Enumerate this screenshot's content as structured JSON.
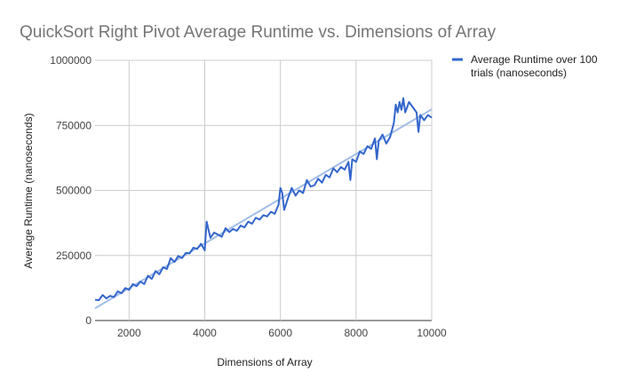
{
  "chart_data": {
    "type": "line",
    "title": "QuickSort Right Pivot Average Runtime vs. Dimensions of Array",
    "xlabel": "Dimensions of Array",
    "ylabel": "Average Runtime (nanoseconds)",
    "xlim": [
      1100,
      10000
    ],
    "ylim": [
      0,
      1000000
    ],
    "x_ticks": [
      2000,
      4000,
      6000,
      8000,
      10000
    ],
    "x_tick_labels": [
      "2000",
      "4000",
      "6000",
      "8000",
      "10000"
    ],
    "y_ticks": [
      0,
      250000,
      500000,
      750000,
      1000000
    ],
    "y_tick_labels": [
      "0",
      "250000",
      "500000",
      "750000",
      "1000000"
    ],
    "grid": true,
    "legend_position": "right",
    "series": [
      {
        "name": "Average Runtime over 100 trials (nanoseconds)",
        "color": "#3366cc",
        "points": [
          [
            1100,
            80000
          ],
          [
            1200,
            78000
          ],
          [
            1300,
            98000
          ],
          [
            1400,
            85000
          ],
          [
            1500,
            95000
          ],
          [
            1600,
            90000
          ],
          [
            1700,
            112000
          ],
          [
            1800,
            105000
          ],
          [
            1900,
            125000
          ],
          [
            2000,
            118000
          ],
          [
            2100,
            140000
          ],
          [
            2200,
            132000
          ],
          [
            2300,
            150000
          ],
          [
            2400,
            140000
          ],
          [
            2500,
            172000
          ],
          [
            2600,
            160000
          ],
          [
            2700,
            190000
          ],
          [
            2800,
            178000
          ],
          [
            2900,
            205000
          ],
          [
            3000,
            198000
          ],
          [
            3100,
            240000
          ],
          [
            3200,
            225000
          ],
          [
            3300,
            248000
          ],
          [
            3400,
            240000
          ],
          [
            3500,
            260000
          ],
          [
            3600,
            258000
          ],
          [
            3700,
            280000
          ],
          [
            3800,
            275000
          ],
          [
            3900,
            295000
          ],
          [
            4000,
            270000
          ],
          [
            4050,
            380000
          ],
          [
            4150,
            318000
          ],
          [
            4250,
            338000
          ],
          [
            4350,
            330000
          ],
          [
            4450,
            322000
          ],
          [
            4550,
            355000
          ],
          [
            4650,
            340000
          ],
          [
            4750,
            352000
          ],
          [
            4850,
            345000
          ],
          [
            4950,
            365000
          ],
          [
            5050,
            358000
          ],
          [
            5150,
            380000
          ],
          [
            5250,
            372000
          ],
          [
            5350,
            395000
          ],
          [
            5450,
            388000
          ],
          [
            5550,
            405000
          ],
          [
            5650,
            400000
          ],
          [
            5750,
            418000
          ],
          [
            5850,
            410000
          ],
          [
            5950,
            445000
          ],
          [
            6000,
            510000
          ],
          [
            6050,
            490000
          ],
          [
            6100,
            425000
          ],
          [
            6200,
            470000
          ],
          [
            6300,
            510000
          ],
          [
            6400,
            480000
          ],
          [
            6500,
            500000
          ],
          [
            6600,
            490000
          ],
          [
            6700,
            540000
          ],
          [
            6800,
            515000
          ],
          [
            6900,
            520000
          ],
          [
            7000,
            545000
          ],
          [
            7100,
            530000
          ],
          [
            7200,
            560000
          ],
          [
            7300,
            550000
          ],
          [
            7400,
            585000
          ],
          [
            7500,
            570000
          ],
          [
            7600,
            590000
          ],
          [
            7700,
            580000
          ],
          [
            7800,
            610000
          ],
          [
            7850,
            540000
          ],
          [
            7900,
            620000
          ],
          [
            8000,
            610000
          ],
          [
            8100,
            650000
          ],
          [
            8200,
            640000
          ],
          [
            8300,
            670000
          ],
          [
            8400,
            660000
          ],
          [
            8500,
            700000
          ],
          [
            8550,
            620000
          ],
          [
            8600,
            690000
          ],
          [
            8700,
            715000
          ],
          [
            8800,
            680000
          ],
          [
            8900,
            705000
          ],
          [
            9000,
            760000
          ],
          [
            9050,
            830000
          ],
          [
            9100,
            800000
          ],
          [
            9150,
            840000
          ],
          [
            9200,
            810000
          ],
          [
            9250,
            855000
          ],
          [
            9300,
            800000
          ],
          [
            9400,
            840000
          ],
          [
            9500,
            820000
          ],
          [
            9600,
            800000
          ],
          [
            9650,
            725000
          ],
          [
            9700,
            790000
          ],
          [
            9800,
            770000
          ],
          [
            9900,
            790000
          ],
          [
            10000,
            780000
          ]
        ]
      }
    ],
    "trendline": {
      "color": "#a3bde6",
      "points": [
        [
          1100,
          47000
        ],
        [
          10000,
          812000
        ]
      ]
    }
  }
}
